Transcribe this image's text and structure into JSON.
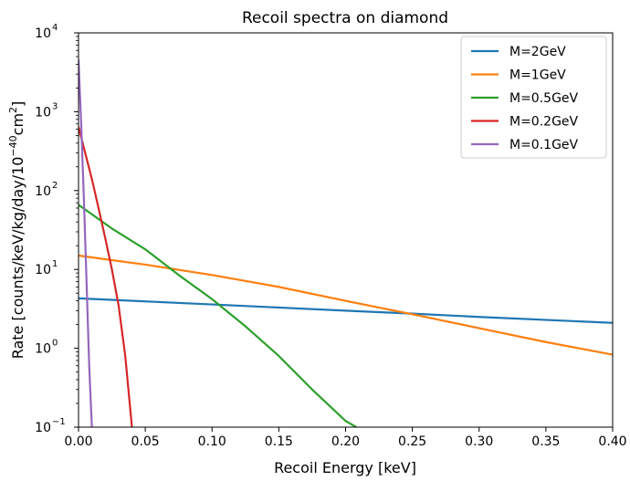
{
  "chart_data": {
    "type": "line",
    "title": "Recoil spectra on diamond",
    "xlabel": "Recoil Energy [keV]",
    "ylabel_main": "Rate [counts/keV/kg/day/10",
    "ylabel_exp1": "−40",
    "ylabel_mid": "cm",
    "ylabel_exp2": "2",
    "ylabel_end": "]",
    "xlim": [
      0.0,
      0.4
    ],
    "ylim": [
      0.1,
      10000
    ],
    "yscale": "log",
    "grid": false,
    "legend_position": "top-right",
    "x_ticks": [
      {
        "value": 0.0,
        "label": "0.00"
      },
      {
        "value": 0.05,
        "label": "0.05"
      },
      {
        "value": 0.1,
        "label": "0.10"
      },
      {
        "value": 0.15,
        "label": "0.15"
      },
      {
        "value": 0.2,
        "label": "0.20"
      },
      {
        "value": 0.25,
        "label": "0.25"
      },
      {
        "value": 0.3,
        "label": "0.30"
      },
      {
        "value": 0.35,
        "label": "0.35"
      },
      {
        "value": 0.4,
        "label": "0.40"
      }
    ],
    "y_ticks": [
      {
        "value": 0.1,
        "base": "10",
        "exp": "−1"
      },
      {
        "value": 1,
        "base": "10",
        "exp": "0"
      },
      {
        "value": 10,
        "base": "10",
        "exp": "1"
      },
      {
        "value": 100,
        "base": "10",
        "exp": "2"
      },
      {
        "value": 1000,
        "base": "10",
        "exp": "3"
      },
      {
        "value": 10000,
        "base": "10",
        "exp": "4"
      }
    ],
    "series": [
      {
        "name": "M=2GeV",
        "color": "#1f77b4",
        "x": [
          0.0,
          0.1,
          0.2,
          0.25,
          0.3,
          0.4
        ],
        "y": [
          4.3,
          3.6,
          3.0,
          2.75,
          2.5,
          2.1
        ]
      },
      {
        "name": "M=1GeV",
        "color": "#ff7f0e",
        "x": [
          0.0,
          0.05,
          0.1,
          0.15,
          0.2,
          0.25,
          0.3,
          0.35,
          0.4
        ],
        "y": [
          15,
          11.5,
          8.5,
          6.0,
          4.0,
          2.7,
          1.8,
          1.2,
          0.83
        ]
      },
      {
        "name": "M=0.5GeV",
        "color": "#2ca02c",
        "x": [
          0.0,
          0.025,
          0.05,
          0.075,
          0.1,
          0.125,
          0.15,
          0.175,
          0.2,
          0.208
        ],
        "y": [
          66,
          33,
          18,
          8.5,
          4.2,
          1.9,
          0.8,
          0.3,
          0.12,
          0.1
        ]
      },
      {
        "name": "M=0.2GeV",
        "color": "#d62728",
        "x": [
          0.0,
          0.005,
          0.01,
          0.015,
          0.02,
          0.025,
          0.03,
          0.035,
          0.04
        ],
        "y": [
          640,
          300,
          140,
          60,
          25,
          10,
          3.5,
          0.8,
          0.1
        ]
      },
      {
        "name": "M=0.1GeV",
        "color": "#9467bd",
        "x": [
          0.0,
          0.002,
          0.004,
          0.006,
          0.008,
          0.01
        ],
        "y": [
          4500,
          700,
          80,
          7,
          0.6,
          0.1
        ]
      }
    ]
  }
}
